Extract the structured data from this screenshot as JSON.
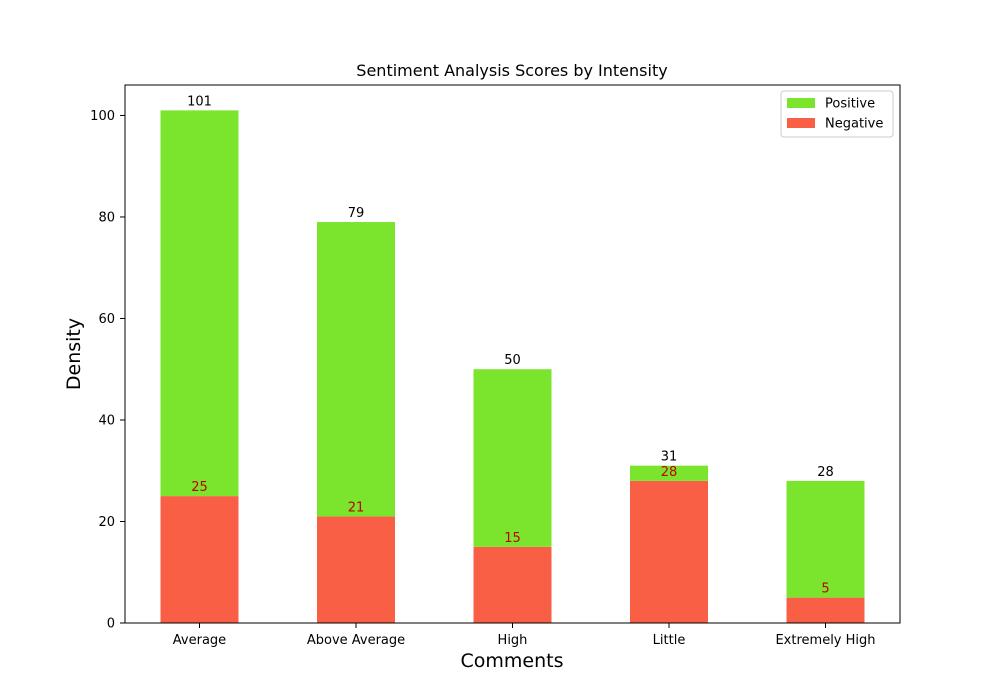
{
  "chart_data": {
    "type": "bar",
    "stacked": true,
    "title": "Sentiment Analysis Scores by Intensity",
    "xlabel": "Comments",
    "ylabel": "Density",
    "categories": [
      "Average",
      "Above Average",
      "High",
      "Little",
      "Extremely High"
    ],
    "series": [
      {
        "name": "Negative",
        "values": [
          25,
          21,
          15,
          28,
          5
        ],
        "color": "#f95f44"
      },
      {
        "name": "Positive",
        "values": [
          76,
          58,
          35,
          3,
          23
        ],
        "color": "#7ae52c"
      }
    ],
    "totals": [
      101,
      79,
      50,
      31,
      28
    ],
    "negative_labels": [
      25,
      21,
      15,
      28,
      5
    ],
    "ylim": [
      0,
      106
    ],
    "yticks": [
      0,
      20,
      40,
      60,
      80,
      100
    ],
    "ytick_labels": [
      "0",
      "20",
      "40",
      "60",
      "80",
      "100"
    ],
    "grid": false,
    "legend": {
      "placement": "top-right",
      "entries": [
        {
          "name": "Positive",
          "color": "#7ae52c"
        },
        {
          "name": "Negative",
          "color": "#f95f44"
        }
      ]
    },
    "colors": {
      "positive": "#7ae52c",
      "negative": "#f95f44",
      "negative_label": "#c00000",
      "total_label": "#000000"
    }
  }
}
